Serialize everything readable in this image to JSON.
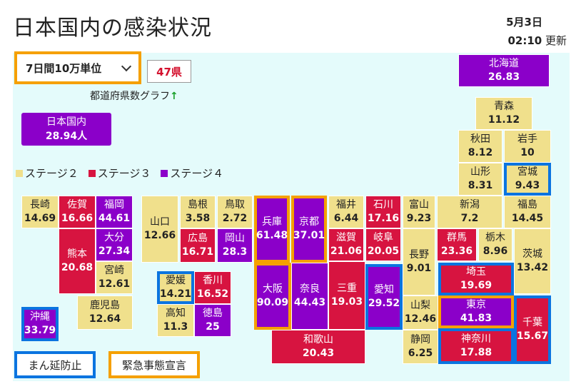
{
  "title": "日本国内の感染状況",
  "date": "5月3日",
  "time": "02:10",
  "updated_label": "更新",
  "controls": {
    "unit_select": "7日間10万単位",
    "prefecture_count": "47県",
    "graph_link": "都道府県数グラフ",
    "graph_arrow": "↑"
  },
  "national": {
    "label": "日本国内",
    "value": "28.94人"
  },
  "legend": [
    {
      "label": "ステージ２",
      "color": "#f0e08c"
    },
    {
      "label": "ステージ３",
      "color": "#d71440"
    },
    {
      "label": "ステージ４",
      "color": "#8b00c9"
    }
  ],
  "key": {
    "manbo": "まん延防止",
    "emergency": "緊急事態宣言"
  },
  "colors": {
    "stage2": "#f0e08c",
    "stage3": "#d71440",
    "stage4": "#8b00c9",
    "manbo_border": "#0a74e0",
    "emergency_border": "#f5a000",
    "map_bg": "#e4fbfb"
  },
  "prefectures": {
    "hokkaido": {
      "name": "北海道",
      "value": "26.83",
      "stage": 4,
      "measure": "none"
    },
    "aomori": {
      "name": "青森",
      "value": "11.12",
      "stage": 2,
      "measure": "none"
    },
    "akita": {
      "name": "秋田",
      "value": "8.12",
      "stage": 2,
      "measure": "none"
    },
    "iwate": {
      "name": "岩手",
      "value": "10",
      "stage": 2,
      "measure": "none"
    },
    "yamagata": {
      "name": "山形",
      "value": "8.31",
      "stage": 2,
      "measure": "none"
    },
    "miyagi": {
      "name": "宮城",
      "value": "9.43",
      "stage": 2,
      "measure": "manbo"
    },
    "niigata": {
      "name": "新潟",
      "value": "7.2",
      "stage": 2,
      "measure": "none"
    },
    "fukushima": {
      "name": "福島",
      "value": "14.45",
      "stage": 2,
      "measure": "none"
    },
    "toyama": {
      "name": "富山",
      "value": "9.23",
      "stage": 2,
      "measure": "none"
    },
    "ishikawa": {
      "name": "石川",
      "value": "17.16",
      "stage": 3,
      "measure": "none"
    },
    "fukui": {
      "name": "福井",
      "value": "6.44",
      "stage": 2,
      "measure": "none"
    },
    "gunma": {
      "name": "群馬",
      "value": "23.36",
      "stage": 3,
      "measure": "none"
    },
    "tochigi": {
      "name": "栃木",
      "value": "8.96",
      "stage": 2,
      "measure": "none"
    },
    "ibaraki": {
      "name": "茨城",
      "value": "13.42",
      "stage": 2,
      "measure": "none"
    },
    "nagano": {
      "name": "長野",
      "value": "9.01",
      "stage": 2,
      "measure": "none"
    },
    "gifu": {
      "name": "岐阜",
      "value": "20.05",
      "stage": 3,
      "measure": "none"
    },
    "shiga": {
      "name": "滋賀",
      "value": "21.06",
      "stage": 3,
      "measure": "none"
    },
    "kyoto": {
      "name": "京都",
      "value": "37.01",
      "stage": 4,
      "measure": "emergency"
    },
    "hyogo": {
      "name": "兵庫",
      "value": "61.48",
      "stage": 4,
      "measure": "emergency"
    },
    "saitama": {
      "name": "埼玉",
      "value": "19.69",
      "stage": 3,
      "measure": "manbo"
    },
    "tokyo": {
      "name": "東京",
      "value": "41.83",
      "stage": 4,
      "measure": "emergency"
    },
    "chiba": {
      "name": "千葉",
      "value": "15.67",
      "stage": 3,
      "measure": "manbo"
    },
    "yamanashi": {
      "name": "山梨",
      "value": "12.46",
      "stage": 2,
      "measure": "none"
    },
    "kanagawa": {
      "name": "神奈川",
      "value": "17.88",
      "stage": 3,
      "measure": "manbo"
    },
    "shizuoka": {
      "name": "静岡",
      "value": "6.25",
      "stage": 2,
      "measure": "none"
    },
    "aichi": {
      "name": "愛知",
      "value": "29.52",
      "stage": 4,
      "measure": "manbo"
    },
    "mie": {
      "name": "三重",
      "value": "19.03",
      "stage": 3,
      "measure": "none"
    },
    "nara": {
      "name": "奈良",
      "value": "44.43",
      "stage": 4,
      "measure": "none"
    },
    "osaka": {
      "name": "大阪",
      "value": "90.09",
      "stage": 4,
      "measure": "emergency"
    },
    "wakayama": {
      "name": "和歌山",
      "value": "20.43",
      "stage": 3,
      "measure": "none"
    },
    "tottori": {
      "name": "鳥取",
      "value": "2.72",
      "stage": 2,
      "measure": "none"
    },
    "shimane": {
      "name": "島根",
      "value": "3.58",
      "stage": 2,
      "measure": "none"
    },
    "okayama": {
      "name": "岡山",
      "value": "28.3",
      "stage": 4,
      "measure": "none"
    },
    "hiroshima": {
      "name": "広島",
      "value": "16.71",
      "stage": 3,
      "measure": "none"
    },
    "yamaguchi": {
      "name": "山口",
      "value": "12.66",
      "stage": 2,
      "measure": "none"
    },
    "kagawa": {
      "name": "香川",
      "value": "16.52",
      "stage": 3,
      "measure": "none"
    },
    "ehime": {
      "name": "愛媛",
      "value": "14.21",
      "stage": 2,
      "measure": "manbo"
    },
    "tokushima": {
      "name": "徳島",
      "value": "25",
      "stage": 4,
      "measure": "none"
    },
    "kochi": {
      "name": "高知",
      "value": "11.3",
      "stage": 2,
      "measure": "none"
    },
    "fukuoka": {
      "name": "福岡",
      "value": "44.61",
      "stage": 4,
      "measure": "none"
    },
    "saga": {
      "name": "佐賀",
      "value": "16.66",
      "stage": 3,
      "measure": "none"
    },
    "nagasaki": {
      "name": "長崎",
      "value": "14.69",
      "stage": 2,
      "measure": "none"
    },
    "kumamoto": {
      "name": "熊本",
      "value": "20.68",
      "stage": 3,
      "measure": "none"
    },
    "oita": {
      "name": "大分",
      "value": "27.34",
      "stage": 4,
      "measure": "none"
    },
    "miyazaki": {
      "name": "宮崎",
      "value": "12.61",
      "stage": 2,
      "measure": "none"
    },
    "kagoshima": {
      "name": "鹿児島",
      "value": "12.64",
      "stage": 2,
      "measure": "none"
    },
    "okinawa": {
      "name": "沖縄",
      "value": "33.79",
      "stage": 4,
      "measure": "manbo"
    }
  }
}
